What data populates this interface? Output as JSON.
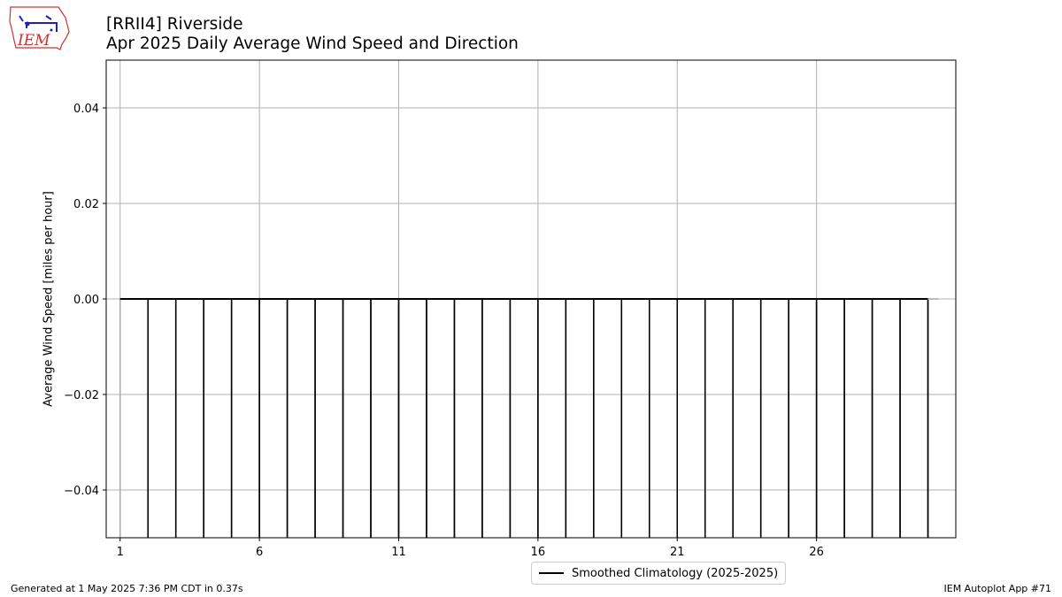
{
  "logo": {
    "text": "IEM"
  },
  "header": {
    "title_line1": "[RRII4] Riverside",
    "title_line2": "Apr 2025 Daily Average Wind Speed and Direction"
  },
  "footer": {
    "left": "Generated at 1 May 2025 7:36 PM CDT in 0.37s",
    "right": "IEM Autoplot App #71"
  },
  "chart_data": {
    "type": "bar",
    "title": "[RRII4] Riverside\nApr 2025 Daily Average Wind Speed and Direction",
    "xlabel": "",
    "ylabel": "Average Wind Speed [miles per hour]",
    "x": [
      1,
      2,
      3,
      4,
      5,
      6,
      7,
      8,
      9,
      10,
      11,
      12,
      13,
      14,
      15,
      16,
      17,
      18,
      19,
      20,
      21,
      22,
      23,
      24,
      25,
      26,
      27,
      28,
      29,
      30
    ],
    "values": [
      0,
      0,
      0,
      0,
      0,
      0,
      0,
      0,
      0,
      0,
      0,
      0,
      0,
      0,
      0,
      0,
      0,
      0,
      0,
      0,
      0,
      0,
      0,
      0,
      0,
      0,
      0,
      0,
      0,
      0
    ],
    "xticks": [
      1,
      6,
      11,
      16,
      21,
      26
    ],
    "yticks": [
      0.04,
      0.02,
      0.0,
      -0.02,
      -0.04
    ],
    "ytick_labels": [
      "0.04",
      "0.02",
      "0.00",
      "−0.02",
      "−0.04"
    ],
    "xlim": [
      0.5,
      31
    ],
    "ylim": [
      -0.05,
      0.05
    ],
    "grid": true,
    "series": [
      {
        "name": "Smoothed Climatology (2025-2025)",
        "values": [
          0,
          0,
          0,
          0,
          0,
          0,
          0,
          0,
          0,
          0,
          0,
          0,
          0,
          0,
          0,
          0,
          0,
          0,
          0,
          0,
          0,
          0,
          0,
          0,
          0,
          0,
          0,
          0,
          0,
          0
        ],
        "color": "#000000"
      }
    ],
    "legend": "bottom-center",
    "colors": {
      "bars": "#000000",
      "grid": "#b0b0b0",
      "bar_edge_first": "#aaaaaa"
    }
  }
}
